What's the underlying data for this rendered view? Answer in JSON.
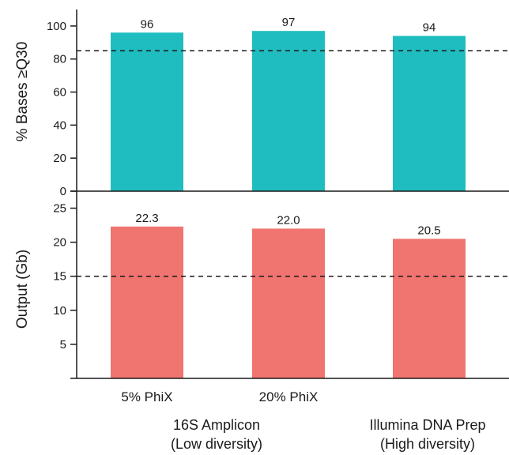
{
  "chart_data": [
    {
      "type": "bar",
      "panel": "top",
      "categories": [
        "5% PhiX",
        "20% PhiX",
        "Illumina DNA Prep"
      ],
      "values": [
        96,
        97,
        94
      ],
      "data_labels": [
        "96",
        "97",
        "94"
      ],
      "ylabel": "% Bases ≥Q30",
      "ylim": [
        0,
        110
      ],
      "yticks": [
        0,
        20,
        40,
        60,
        80,
        100
      ],
      "ytick_labels": [
        "0",
        "20",
        "40",
        "60",
        "80",
        "100"
      ],
      "reference_line": 85,
      "color": "#1fbdbf"
    },
    {
      "type": "bar",
      "panel": "bottom",
      "categories": [
        "5% PhiX",
        "20% PhiX",
        "Illumina DNA Prep"
      ],
      "values": [
        22.3,
        22.0,
        20.5
      ],
      "data_labels": [
        "22.3",
        "22.0",
        "20.5"
      ],
      "ylabel": "Output (Gb)",
      "ylim": [
        0,
        27.5
      ],
      "yticks": [
        5,
        10,
        15,
        20,
        25
      ],
      "ytick_labels": [
        "5",
        "10",
        "15",
        "20",
        "25"
      ],
      "reference_line": 15,
      "color": "#f07470"
    }
  ],
  "x_axis": {
    "bar_labels": [
      "5% PhiX",
      "20% PhiX",
      ""
    ],
    "groups": [
      {
        "line1": "16S Amplicon",
        "line2": "(Low diversity)"
      },
      {
        "line1": "Illumina DNA Prep",
        "line2": "(High diversity)"
      }
    ]
  }
}
